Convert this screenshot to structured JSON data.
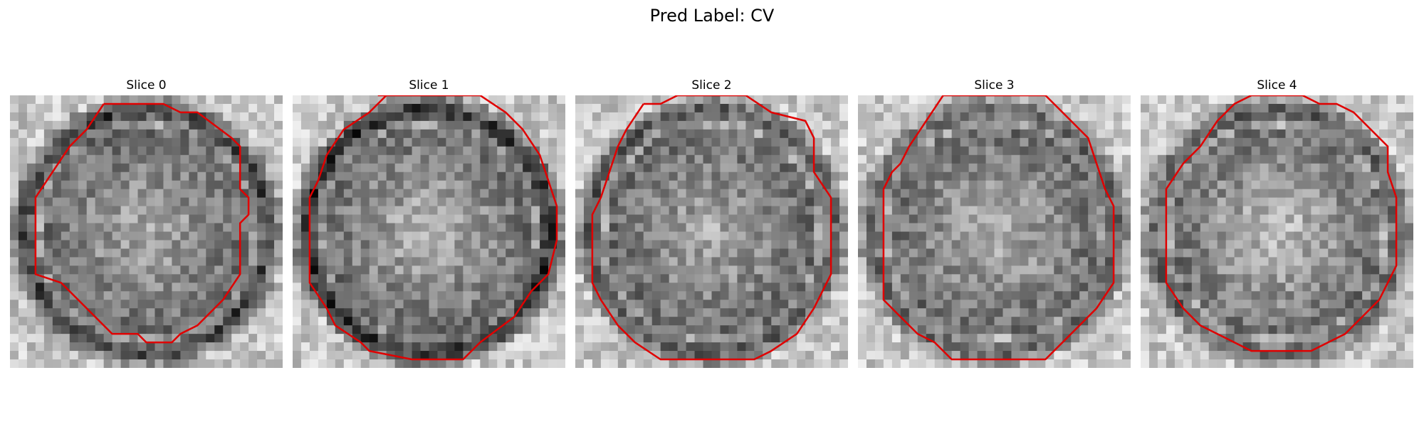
{
  "figure": {
    "title": "Pred Label: CV"
  },
  "colors": {
    "background": "#ffffff",
    "contour": "#e00000",
    "text": "#000000"
  },
  "panels": [
    {
      "title": "Slice 0",
      "seed": 11,
      "ring_dark": 0.62,
      "center_bright": 0.55,
      "contour": "octagon-a"
    },
    {
      "title": "Slice 1",
      "seed": 23,
      "ring_dark": 0.7,
      "center_bright": 0.62,
      "contour": "octagon-b"
    },
    {
      "title": "Slice 2",
      "seed": 37,
      "ring_dark": 0.5,
      "center_bright": 0.55,
      "contour": "octagon-c"
    },
    {
      "title": "Slice 3",
      "seed": 41,
      "ring_dark": 0.45,
      "center_bright": 0.6,
      "contour": "octagon-d"
    },
    {
      "title": "Slice 4",
      "seed": 59,
      "ring_dark": 0.48,
      "center_bright": 0.7,
      "contour": "octagon-e"
    }
  ]
}
